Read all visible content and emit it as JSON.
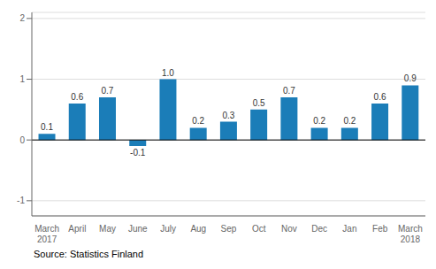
{
  "chart_data": {
    "type": "bar",
    "categories": [
      "March\n2017",
      "April",
      "May",
      "June",
      "July",
      "Aug",
      "Sep",
      "Oct",
      "Nov",
      "Dec",
      "Jan",
      "Feb",
      "March\n2018"
    ],
    "values": [
      0.1,
      0.6,
      0.7,
      -0.1,
      1.0,
      0.2,
      0.3,
      0.5,
      0.7,
      0.2,
      0.2,
      0.6,
      0.9
    ],
    "value_labels": [
      "0.1",
      "0.6",
      "0.7",
      "-0.1",
      "1.0",
      "0.2",
      "0.3",
      "0.5",
      "0.7",
      "0.2",
      "0.2",
      "0.6",
      "0.9"
    ],
    "color": "#1b7db8",
    "ylim": [
      -1.25,
      2.1
    ],
    "yticks": [
      -1,
      0,
      1,
      2
    ],
    "grid": true,
    "data_labels": true,
    "annotations": [
      "Source: Statistics Finland"
    ]
  }
}
